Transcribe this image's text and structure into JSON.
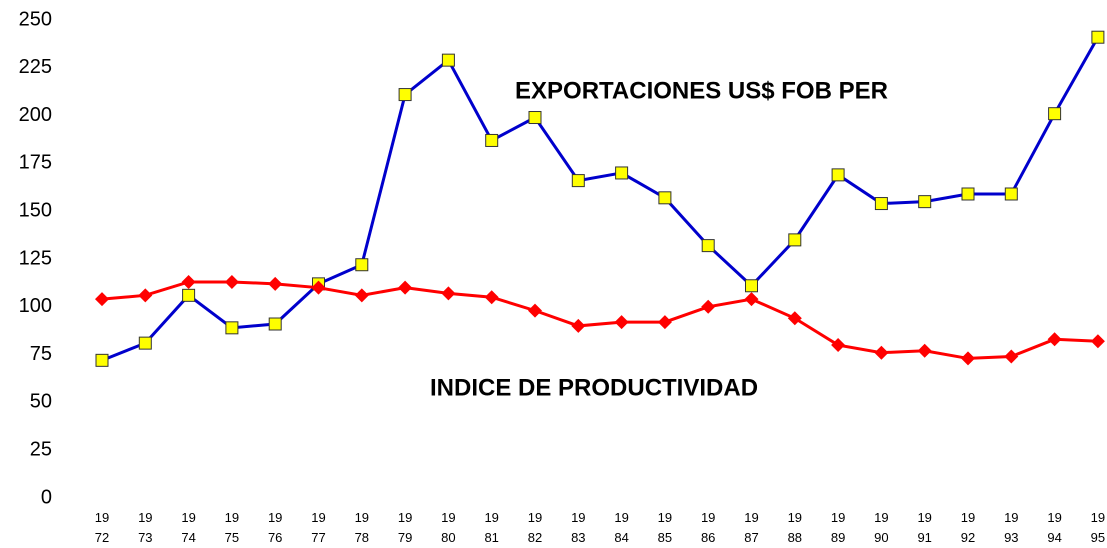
{
  "chart_data": {
    "type": "line",
    "categories": [
      "1972",
      "1973",
      "1974",
      "1975",
      "1976",
      "1977",
      "1978",
      "1979",
      "1980",
      "1981",
      "1982",
      "1983",
      "1984",
      "1985",
      "1986",
      "1987",
      "1988",
      "1989",
      "1990",
      "1991",
      "1992",
      "1993",
      "1994",
      "1995"
    ],
    "series": [
      {
        "name": "EXPORTACIONES US$ FOB PER",
        "color": "#0000cc",
        "marker": "square",
        "marker_color": "#ffff00",
        "values": [
          72,
          81,
          106,
          89,
          91,
          112,
          122,
          211,
          229,
          187,
          199,
          166,
          170,
          157,
          132,
          111,
          135,
          169,
          154,
          155,
          159,
          159,
          201,
          241
        ]
      },
      {
        "name": "INDICE DE PRODUCTIVIDAD",
        "color": "#ff0000",
        "marker": "diamond",
        "marker_color": "#ff0000",
        "values": [
          104,
          106,
          113,
          113,
          112,
          110,
          106,
          110,
          107,
          105,
          98,
          90,
          92,
          92,
          100,
          104,
          94,
          80,
          76,
          77,
          73,
          74,
          83,
          82
        ]
      }
    ],
    "ylim": [
      0,
      250
    ],
    "yticks": [
      0,
      25,
      50,
      75,
      100,
      125,
      150,
      175,
      200,
      225,
      250
    ],
    "grid": false
  }
}
